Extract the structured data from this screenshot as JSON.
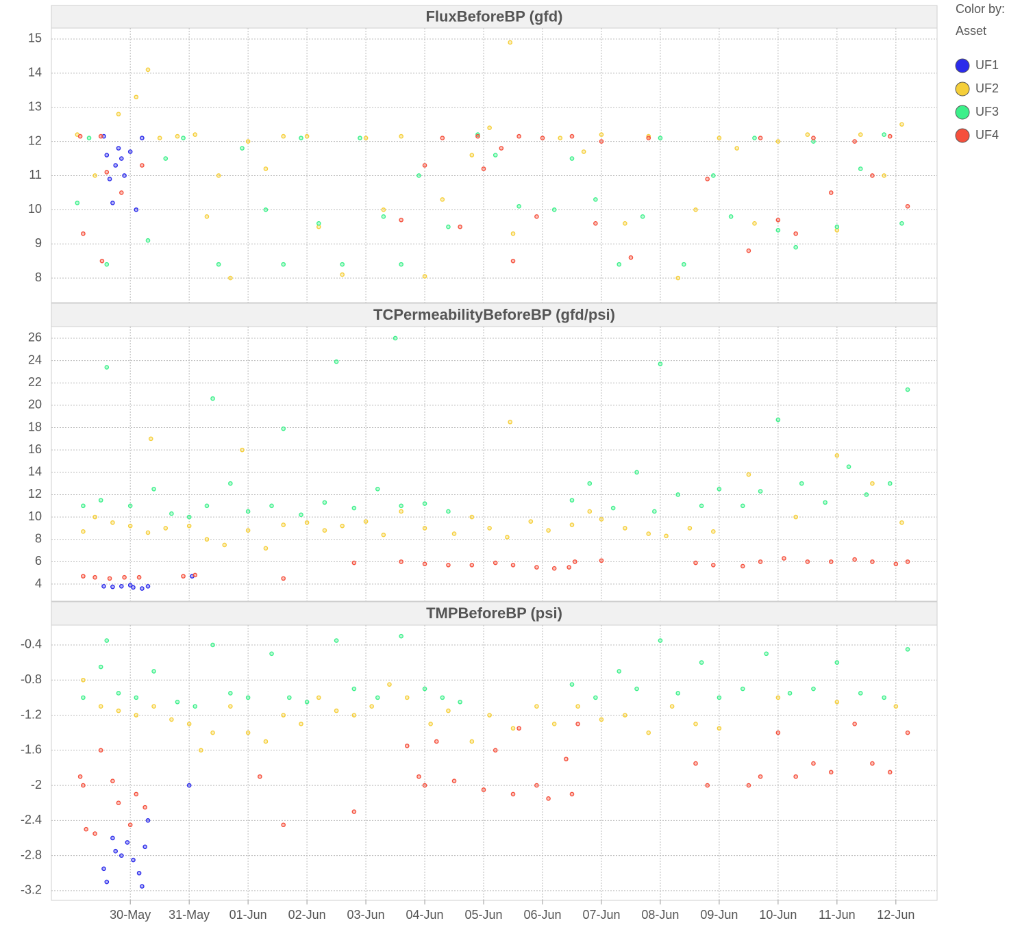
{
  "legend": {
    "label": "Color by:",
    "field": "Asset"
  },
  "chart_data": [
    {
      "type": "scatter",
      "title": "FluxBeforeBP (gfd)",
      "xlim": [
        -1.34,
        13.7
      ],
      "ylim": [
        7.28,
        15.32
      ],
      "yticks": [
        8,
        9,
        10,
        11,
        12,
        13,
        14,
        15
      ],
      "grid": true,
      "series": [
        {
          "name": "UF1",
          "color": "#2b2bea",
          "x": [
            -0.45,
            -0.4,
            -0.35,
            -0.3,
            -0.25,
            -0.2,
            -0.15,
            -0.1,
            0.0,
            0.1,
            0.2
          ],
          "values": [
            12.15,
            11.6,
            10.9,
            10.2,
            11.3,
            11.8,
            11.5,
            11.0,
            11.7,
            10.0,
            12.1
          ]
        },
        {
          "name": "UF2",
          "color": "#f5cf3a",
          "x": [
            -0.9,
            -0.6,
            -0.2,
            0.1,
            0.3,
            0.5,
            0.8,
            1.1,
            1.3,
            1.5,
            1.7,
            2.0,
            2.3,
            2.6,
            3.0,
            3.2,
            3.6,
            4.0,
            4.3,
            4.6,
            5.0,
            5.3,
            5.8,
            6.1,
            6.5,
            6.45,
            7.3,
            7.7,
            8.0,
            8.4,
            8.8,
            9.3,
            9.6,
            10.0,
            10.3,
            10.6,
            11.0,
            11.5,
            12.0,
            12.4,
            12.8,
            13.1
          ],
          "values": [
            12.2,
            11.0,
            12.8,
            13.3,
            14.1,
            12.1,
            12.15,
            12.2,
            9.8,
            11.0,
            8.0,
            12.0,
            11.2,
            12.15,
            12.15,
            9.5,
            8.1,
            12.1,
            10.0,
            12.15,
            8.05,
            10.3,
            11.6,
            12.4,
            9.3,
            14.9,
            12.1,
            11.7,
            12.2,
            9.6,
            12.15,
            8.0,
            10.0,
            12.1,
            11.8,
            9.6,
            12.0,
            12.2,
            9.4,
            12.2,
            11.0,
            12.5
          ]
        },
        {
          "name": "UF3",
          "color": "#3cf08a",
          "x": [
            -0.9,
            -0.7,
            -0.4,
            0.3,
            0.6,
            0.9,
            1.5,
            1.9,
            2.3,
            2.6,
            2.9,
            3.2,
            3.6,
            3.9,
            4.3,
            4.6,
            4.9,
            5.4,
            5.9,
            6.2,
            6.6,
            7.2,
            7.5,
            7.9,
            8.3,
            8.7,
            9.0,
            9.4,
            9.9,
            10.2,
            10.6,
            11.0,
            11.3,
            11.6,
            12.0,
            12.4,
            12.8,
            13.1
          ],
          "values": [
            10.2,
            12.1,
            8.4,
            9.1,
            11.5,
            12.1,
            8.4,
            11.8,
            10.0,
            8.4,
            12.1,
            9.6,
            8.4,
            12.1,
            9.8,
            8.4,
            11.0,
            9.5,
            12.2,
            11.6,
            10.1,
            10.0,
            11.5,
            10.3,
            8.4,
            9.8,
            12.1,
            8.4,
            11.0,
            9.8,
            12.1,
            9.4,
            8.9,
            12.0,
            9.5,
            11.2,
            12.2,
            9.6
          ]
        },
        {
          "name": "UF4",
          "color": "#f5503c",
          "x": [
            -0.85,
            -0.8,
            -0.5,
            -0.48,
            -0.4,
            -0.15,
            0.2,
            4.6,
            5.0,
            5.3,
            5.6,
            5.9,
            6.0,
            6.3,
            6.6,
            6.9,
            7.0,
            6.5,
            7.5,
            7.9,
            8.0,
            8.5,
            8.8,
            9.8,
            10.5,
            10.7,
            11.0,
            11.3,
            11.6,
            11.9,
            12.3,
            12.6,
            12.9,
            13.2
          ],
          "values": [
            12.15,
            9.3,
            12.15,
            8.5,
            11.1,
            10.5,
            11.3,
            9.7,
            11.3,
            12.1,
            9.5,
            12.15,
            11.2,
            11.8,
            12.15,
            9.8,
            12.1,
            8.5,
            12.15,
            9.6,
            12.0,
            8.6,
            12.1,
            10.9,
            8.8,
            12.1,
            9.7,
            9.3,
            12.1,
            10.5,
            12.0,
            11.0,
            12.15,
            10.1
          ]
        }
      ]
    },
    {
      "type": "scatter",
      "title": "TCPermeabilityBeforeBP (gfd/psi)",
      "xlim": [
        -1.34,
        13.7
      ],
      "ylim": [
        2.47,
        27.04
      ],
      "yticks": [
        4,
        6,
        8,
        10,
        12,
        14,
        16,
        18,
        20,
        22,
        24,
        26
      ],
      "grid": true,
      "series": [
        {
          "name": "UF1",
          "color": "#2b2bea",
          "x": [
            -0.45,
            -0.3,
            -0.15,
            0.0,
            0.05,
            0.2,
            0.3,
            1.05
          ],
          "values": [
            3.8,
            3.75,
            3.8,
            3.9,
            3.7,
            3.6,
            3.8,
            4.7
          ]
        },
        {
          "name": "UF2",
          "color": "#f5cf3a",
          "x": [
            -0.8,
            -0.6,
            -0.3,
            0.0,
            0.3,
            0.6,
            1.0,
            1.3,
            1.6,
            2.0,
            2.3,
            2.6,
            3.0,
            3.3,
            3.6,
            4.0,
            4.3,
            4.6,
            5.0,
            5.5,
            5.8,
            6.1,
            6.4,
            6.8,
            7.1,
            7.5,
            7.8,
            8.0,
            8.4,
            8.8,
            9.1,
            9.5,
            9.9,
            10.5,
            11.3,
            12.0,
            12.6,
            13.1,
            0.35,
            1.9,
            6.45
          ],
          "values": [
            8.7,
            10.0,
            9.5,
            9.2,
            8.6,
            9.0,
            9.2,
            8.0,
            7.5,
            8.8,
            7.2,
            9.3,
            9.5,
            8.8,
            9.2,
            9.6,
            8.4,
            10.5,
            9.0,
            8.5,
            10.0,
            9.0,
            8.2,
            9.6,
            8.8,
            9.3,
            10.5,
            9.8,
            9.0,
            8.5,
            8.3,
            9.0,
            8.7,
            13.8,
            10.0,
            15.5,
            13.0,
            9.5,
            17.0,
            16.0,
            18.5
          ]
        },
        {
          "name": "UF3",
          "color": "#3cf08a",
          "x": [
            -0.8,
            -0.5,
            -0.4,
            0.0,
            0.4,
            0.7,
            1.0,
            1.3,
            1.4,
            1.7,
            2.0,
            2.4,
            2.6,
            2.9,
            3.3,
            3.5,
            3.8,
            4.2,
            4.6,
            4.5,
            5.0,
            5.4,
            7.5,
            7.8,
            8.2,
            8.6,
            8.9,
            9.0,
            9.3,
            9.7,
            10.0,
            10.4,
            10.7,
            11.0,
            11.4,
            11.8,
            12.2,
            12.5,
            12.9,
            13.2
          ],
          "values": [
            11.0,
            11.5,
            23.4,
            11.0,
            12.5,
            10.3,
            10.0,
            11.0,
            20.6,
            13.0,
            10.5,
            11.0,
            17.9,
            10.2,
            11.3,
            23.9,
            10.8,
            12.5,
            11.0,
            26.0,
            11.2,
            10.5,
            11.5,
            13.0,
            10.8,
            14.0,
            10.5,
            23.7,
            12.0,
            11.0,
            12.5,
            11.0,
            12.3,
            18.7,
            13.0,
            11.3,
            14.5,
            12.0,
            13.0,
            21.4
          ]
        },
        {
          "name": "UF4",
          "color": "#f5503c",
          "x": [
            -0.8,
            -0.6,
            -0.35,
            -0.1,
            0.15,
            0.9,
            1.1,
            2.6,
            3.8,
            4.6,
            5.0,
            5.4,
            5.8,
            6.2,
            6.5,
            6.9,
            7.2,
            7.45,
            7.55,
            8.0,
            9.6,
            9.9,
            10.4,
            10.7,
            11.1,
            11.5,
            11.9,
            12.3,
            12.6,
            13.0,
            13.2
          ],
          "values": [
            4.7,
            4.6,
            4.5,
            4.6,
            4.6,
            4.7,
            4.8,
            4.5,
            5.9,
            6.0,
            5.8,
            5.7,
            5.7,
            5.9,
            5.7,
            5.5,
            5.4,
            5.5,
            6.0,
            6.1,
            5.9,
            5.7,
            5.6,
            6.0,
            6.3,
            6.0,
            6.0,
            6.2,
            6.0,
            5.8,
            6.0
          ]
        }
      ]
    },
    {
      "type": "scatter",
      "title": "TMPBeforeBP (psi)",
      "xlim": [
        -1.34,
        13.7
      ],
      "ylim": [
        -3.31,
        -0.174
      ],
      "yticks": [
        -0.4,
        -0.8,
        -1.2,
        -1.6,
        -2,
        -2.4,
        -2.8,
        -3.2
      ],
      "grid": true,
      "xticks": [
        {
          "value": 0,
          "label": "30-May"
        },
        {
          "value": 1,
          "label": "31-May"
        },
        {
          "value": 2,
          "label": "01-Jun"
        },
        {
          "value": 3,
          "label": "02-Jun"
        },
        {
          "value": 4,
          "label": "03-Jun"
        },
        {
          "value": 5,
          "label": "04-Jun"
        },
        {
          "value": 6,
          "label": "05-Jun"
        },
        {
          "value": 7,
          "label": "06-Jun"
        },
        {
          "value": 8,
          "label": "07-Jun"
        },
        {
          "value": 9,
          "label": "08-Jun"
        },
        {
          "value": 10,
          "label": "09-Jun"
        },
        {
          "value": 11,
          "label": "10-Jun"
        },
        {
          "value": 12,
          "label": "11-Jun"
        },
        {
          "value": 13,
          "label": "12-Jun"
        }
      ],
      "series": [
        {
          "name": "UF1",
          "color": "#2b2bea",
          "x": [
            -0.45,
            -0.4,
            -0.3,
            -0.25,
            -0.15,
            -0.05,
            0.05,
            0.15,
            0.2,
            0.25,
            0.3,
            1.0
          ],
          "values": [
            -2.95,
            -3.1,
            -2.6,
            -2.75,
            -2.8,
            -2.65,
            -2.85,
            -3.0,
            -3.15,
            -2.7,
            -2.4,
            -2.0
          ]
        },
        {
          "name": "UF2",
          "color": "#f5cf3a",
          "x": [
            -0.8,
            -0.5,
            -0.2,
            0.1,
            0.4,
            0.7,
            1.0,
            1.2,
            1.4,
            1.7,
            2.0,
            2.3,
            2.6,
            2.9,
            3.2,
            3.5,
            3.8,
            4.1,
            4.4,
            4.7,
            5.1,
            5.4,
            5.8,
            6.1,
            6.5,
            6.9,
            7.2,
            7.6,
            8.0,
            8.4,
            8.8,
            9.2,
            9.6,
            10.0,
            11.0,
            12.0,
            13.0
          ],
          "values": [
            -0.8,
            -1.1,
            -1.15,
            -1.2,
            -1.1,
            -1.25,
            -1.3,
            -1.6,
            -1.4,
            -1.1,
            -1.4,
            -1.5,
            -1.2,
            -1.3,
            -1.0,
            -1.15,
            -1.2,
            -1.1,
            -0.85,
            -1.0,
            -1.3,
            -1.15,
            -1.5,
            -1.2,
            -1.35,
            -1.1,
            -1.3,
            -1.1,
            -1.25,
            -1.2,
            -1.4,
            -1.1,
            -1.3,
            -1.35,
            -1.0,
            -1.05,
            -1.1
          ]
        },
        {
          "name": "UF3",
          "color": "#3cf08a",
          "x": [
            -0.8,
            -0.5,
            -0.4,
            -0.2,
            0.1,
            0.4,
            0.8,
            1.1,
            1.4,
            1.7,
            2.0,
            2.4,
            2.7,
            3.0,
            3.5,
            3.8,
            4.2,
            4.6,
            5.0,
            5.3,
            5.6,
            7.5,
            7.9,
            8.3,
            8.6,
            9.0,
            9.3,
            9.7,
            10.0,
            10.4,
            10.8,
            11.2,
            11.6,
            12.0,
            12.4,
            12.8,
            13.2
          ],
          "values": [
            -1.0,
            -0.65,
            -0.35,
            -0.95,
            -1.0,
            -0.7,
            -1.05,
            -1.1,
            -0.4,
            -0.95,
            -1.0,
            -0.5,
            -1.0,
            -1.05,
            -0.35,
            -0.9,
            -1.0,
            -0.3,
            -0.9,
            -1.0,
            -1.05,
            -0.85,
            -1.0,
            -0.7,
            -0.9,
            -0.35,
            -0.95,
            -0.6,
            -1.0,
            -0.9,
            -0.5,
            -0.95,
            -0.9,
            -0.6,
            -0.95,
            -1.0,
            -0.45
          ]
        },
        {
          "name": "UF4",
          "color": "#f5503c",
          "x": [
            -0.85,
            -0.8,
            -0.75,
            -0.6,
            -0.5,
            -0.3,
            -0.2,
            0.0,
            0.1,
            0.25,
            2.2,
            2.6,
            3.8,
            4.7,
            4.9,
            5.0,
            5.2,
            5.5,
            6.0,
            6.2,
            6.5,
            6.6,
            6.9,
            7.1,
            7.4,
            7.5,
            7.6,
            9.6,
            9.8,
            10.5,
            10.7,
            11.0,
            11.3,
            11.6,
            11.9,
            12.3,
            12.6,
            12.9,
            13.2
          ],
          "values": [
            -1.9,
            -2.0,
            -2.5,
            -2.55,
            -1.6,
            -1.95,
            -2.2,
            -2.45,
            -2.1,
            -2.25,
            -1.9,
            -2.45,
            -2.3,
            -1.55,
            -1.9,
            -2.0,
            -1.5,
            -1.95,
            -2.05,
            -1.6,
            -2.1,
            -1.35,
            -2.0,
            -2.15,
            -1.7,
            -2.1,
            -1.3,
            -1.75,
            -2.0,
            -2.0,
            -1.9,
            -1.4,
            -1.9,
            -1.75,
            -1.85,
            -1.3,
            -1.75,
            -1.85,
            -1.4
          ]
        }
      ]
    }
  ]
}
